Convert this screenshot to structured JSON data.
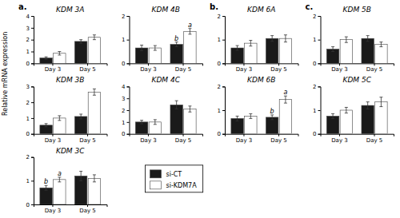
{
  "chart_data": [
    {
      "type": "bar",
      "title": "KDM 3A",
      "categories": [
        "Day 3",
        "Day 5"
      ],
      "ylim": [
        0,
        4
      ],
      "yticks": [
        0,
        1,
        2,
        3,
        4
      ],
      "series": [
        {
          "name": "si-CT",
          "color": "#1a1a1a",
          "values": [
            0.45,
            1.85
          ],
          "errors": [
            0.1,
            0.15
          ],
          "letters": [
            null,
            null
          ]
        },
        {
          "name": "si-KDM7A",
          "color": "#ffffff",
          "values": [
            0.85,
            2.2
          ],
          "errors": [
            0.15,
            0.2
          ],
          "letters": [
            null,
            null
          ]
        }
      ]
    },
    {
      "type": "bar",
      "title": "KDM 4B",
      "categories": [
        "Day 3",
        "Day 5"
      ],
      "ylim": [
        0,
        2
      ],
      "yticks": [
        0,
        1,
        2
      ],
      "series": [
        {
          "name": "si-CT",
          "color": "#1a1a1a",
          "values": [
            0.65,
            0.8
          ],
          "errors": [
            0.12,
            0.1
          ],
          "letters": [
            null,
            "b"
          ]
        },
        {
          "name": "si-KDM7A",
          "color": "#ffffff",
          "values": [
            0.65,
            1.35
          ],
          "errors": [
            0.1,
            0.12
          ],
          "letters": [
            null,
            "a"
          ]
        }
      ]
    },
    {
      "type": "bar",
      "title": "KDM 6A",
      "categories": [
        "Day 3",
        "Day 5"
      ],
      "ylim": [
        0,
        2
      ],
      "yticks": [
        0,
        1,
        2
      ],
      "series": [
        {
          "name": "si-CT",
          "color": "#1a1a1a",
          "values": [
            0.65,
            1.05
          ],
          "errors": [
            0.1,
            0.12
          ],
          "letters": [
            null,
            null
          ]
        },
        {
          "name": "si-KDM7A",
          "color": "#ffffff",
          "values": [
            0.85,
            1.05
          ],
          "errors": [
            0.12,
            0.15
          ],
          "letters": [
            null,
            null
          ]
        }
      ]
    },
    {
      "type": "bar",
      "title": "KDM 5B",
      "categories": [
        "Day 3",
        "Day 5"
      ],
      "ylim": [
        0,
        2
      ],
      "yticks": [
        0,
        1,
        2
      ],
      "series": [
        {
          "name": "si-CT",
          "color": "#1a1a1a",
          "values": [
            0.6,
            1.05
          ],
          "errors": [
            0.1,
            0.12
          ],
          "letters": [
            null,
            null
          ]
        },
        {
          "name": "si-KDM7A",
          "color": "#ffffff",
          "values": [
            1.0,
            0.8
          ],
          "errors": [
            0.12,
            0.1
          ],
          "letters": [
            null,
            null
          ]
        }
      ]
    },
    {
      "type": "bar",
      "title": "KDM 3B",
      "categories": [
        "Day 3",
        "Day 5"
      ],
      "ylim": [
        0,
        3
      ],
      "yticks": [
        0,
        1,
        2,
        3
      ],
      "series": [
        {
          "name": "si-CT",
          "color": "#1a1a1a",
          "values": [
            0.55,
            1.1
          ],
          "errors": [
            0.1,
            0.15
          ],
          "letters": [
            null,
            null
          ]
        },
        {
          "name": "si-KDM7A",
          "color": "#ffffff",
          "values": [
            1.0,
            2.65
          ],
          "errors": [
            0.15,
            0.2
          ],
          "letters": [
            null,
            null
          ]
        }
      ]
    },
    {
      "type": "bar",
      "title": "KDM 4C",
      "categories": [
        "Day 3",
        "Day 5"
      ],
      "ylim": [
        0,
        4
      ],
      "yticks": [
        0,
        1,
        2,
        3,
        4
      ],
      "series": [
        {
          "name": "si-CT",
          "color": "#1a1a1a",
          "values": [
            1.0,
            2.45
          ],
          "errors": [
            0.15,
            0.35
          ],
          "letters": [
            null,
            null
          ]
        },
        {
          "name": "si-KDM7A",
          "color": "#ffffff",
          "values": [
            1.0,
            2.1
          ],
          "errors": [
            0.2,
            0.25
          ],
          "letters": [
            null,
            null
          ]
        }
      ]
    },
    {
      "type": "bar",
      "title": "KDM 6B",
      "categories": [
        "Day 3",
        "Day 5"
      ],
      "ylim": [
        0,
        2
      ],
      "yticks": [
        0,
        1,
        2
      ],
      "series": [
        {
          "name": "si-CT",
          "color": "#1a1a1a",
          "values": [
            0.65,
            0.7
          ],
          "errors": [
            0.1,
            0.1
          ],
          "letters": [
            null,
            "b"
          ]
        },
        {
          "name": "si-KDM7A",
          "color": "#ffffff",
          "values": [
            0.75,
            1.45
          ],
          "errors": [
            0.1,
            0.15
          ],
          "letters": [
            null,
            "a"
          ]
        }
      ]
    },
    {
      "type": "bar",
      "title": "KDM 5C",
      "categories": [
        "Day 3",
        "Day 5"
      ],
      "ylim": [
        0,
        2
      ],
      "yticks": [
        0,
        1,
        2
      ],
      "series": [
        {
          "name": "si-CT",
          "color": "#1a1a1a",
          "values": [
            0.75,
            1.2
          ],
          "errors": [
            0.1,
            0.15
          ],
          "letters": [
            null,
            null
          ]
        },
        {
          "name": "si-KDM7A",
          "color": "#ffffff",
          "values": [
            1.0,
            1.35
          ],
          "errors": [
            0.12,
            0.2
          ],
          "letters": [
            null,
            null
          ]
        }
      ]
    },
    {
      "type": "bar",
      "title": "KDM 3C",
      "categories": [
        "Day 3",
        "Day 5"
      ],
      "ylim": [
        0,
        2
      ],
      "yticks": [
        0,
        1,
        2
      ],
      "series": [
        {
          "name": "si-CT",
          "color": "#1a1a1a",
          "values": [
            0.7,
            1.2
          ],
          "errors": [
            0.1,
            0.2
          ],
          "letters": [
            "b",
            null
          ]
        },
        {
          "name": "si-KDM7A",
          "color": "#ffffff",
          "values": [
            1.05,
            1.1
          ],
          "errors": [
            0.1,
            0.15
          ],
          "letters": [
            "a",
            null
          ]
        }
      ]
    }
  ],
  "ylabel": "Relative mRNA expression",
  "annotations": [
    "a.",
    "b.",
    "c."
  ]
}
